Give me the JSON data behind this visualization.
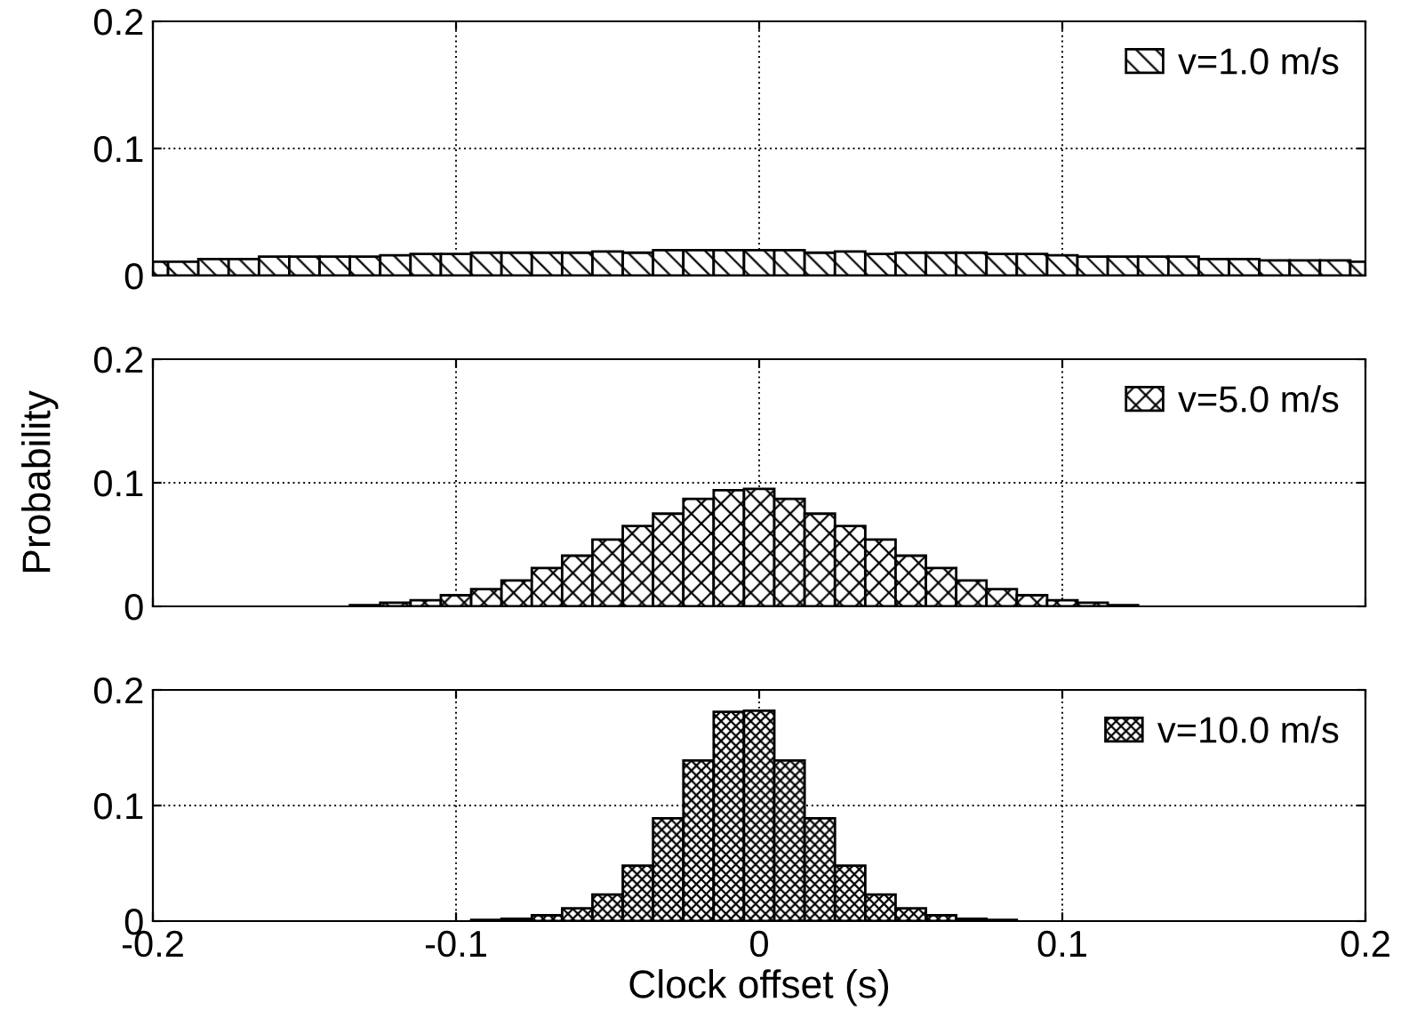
{
  "chart_data": [
    {
      "type": "histogram",
      "bins": [
        -0.2,
        -0.195,
        -0.185,
        -0.175,
        -0.165,
        -0.155,
        -0.145,
        -0.135,
        -0.125,
        -0.115,
        -0.105,
        -0.095,
        -0.085,
        -0.075,
        -0.065,
        -0.055,
        -0.045,
        -0.035,
        -0.025,
        -0.015,
        -0.005,
        0.005,
        0.015,
        0.025,
        0.035,
        0.045,
        0.055,
        0.065,
        0.075,
        0.085,
        0.095,
        0.105,
        0.115,
        0.125,
        0.135,
        0.145,
        0.155,
        0.165,
        0.175,
        0.185,
        0.195,
        0.2
      ],
      "series": [
        {
          "name": "v=1.0 m/s",
          "color": "#000000",
          "values": [
            0.011,
            0.011,
            0.013,
            0.013,
            0.015,
            0.015,
            0.015,
            0.015,
            0.016,
            0.017,
            0.017,
            0.018,
            0.018,
            0.018,
            0.018,
            0.019,
            0.018,
            0.02,
            0.02,
            0.02,
            0.02,
            0.02,
            0.018,
            0.019,
            0.017,
            0.018,
            0.018,
            0.018,
            0.017,
            0.017,
            0.016,
            0.015,
            0.015,
            0.015,
            0.015,
            0.013,
            0.013,
            0.012,
            0.012,
            0.012,
            0.011
          ]
        }
      ],
      "xlim": [
        -0.2,
        0.2
      ],
      "xticks": [
        -0.2,
        -0.1,
        0,
        0.1,
        0.2
      ],
      "ylim": [
        0,
        0.2
      ],
      "yticks": [
        0,
        0.1,
        0.2
      ],
      "grid": true,
      "legend": "top right",
      "tick_labels": "y"
    },
    {
      "type": "histogram",
      "ylabel": "Probability",
      "bins": [
        -0.135,
        -0.125,
        -0.115,
        -0.105,
        -0.095,
        -0.085,
        -0.075,
        -0.065,
        -0.055,
        -0.045,
        -0.035,
        -0.025,
        -0.015,
        -0.005,
        0.005,
        0.015,
        0.025,
        0.035,
        0.045,
        0.055,
        0.065,
        0.075,
        0.085,
        0.095,
        0.105,
        0.115,
        0.125
      ],
      "series": [
        {
          "name": "v=5.0 m/s",
          "color": "#000000",
          "values": [
            0.001,
            0.003,
            0.005,
            0.009,
            0.014,
            0.021,
            0.031,
            0.041,
            0.054,
            0.065,
            0.075,
            0.087,
            0.094,
            0.095,
            0.087,
            0.075,
            0.065,
            0.054,
            0.041,
            0.031,
            0.021,
            0.014,
            0.009,
            0.005,
            0.003,
            0.001
          ]
        }
      ],
      "xlim": [
        -0.2,
        0.2
      ],
      "xticks": [
        -0.2,
        -0.1,
        0,
        0.1,
        0.2
      ],
      "ylim": [
        0,
        0.2
      ],
      "yticks": [
        0,
        0.1,
        0.2
      ],
      "grid": true,
      "legend": "top right",
      "tick_labels": "y"
    },
    {
      "type": "histogram",
      "xlabel": "Clock offset (s)",
      "bins": [
        -0.095,
        -0.085,
        -0.075,
        -0.065,
        -0.055,
        -0.045,
        -0.035,
        -0.025,
        -0.015,
        -0.005,
        0.005,
        0.015,
        0.025,
        0.035,
        0.045,
        0.055,
        0.065,
        0.075,
        0.085
      ],
      "series": [
        {
          "name": "v=10.0 m/s",
          "color": "#000000",
          "values": [
            0.001,
            0.002,
            0.005,
            0.011,
            0.023,
            0.048,
            0.089,
            0.139,
            0.181,
            0.182,
            0.139,
            0.089,
            0.048,
            0.023,
            0.011,
            0.005,
            0.002,
            0.001
          ]
        }
      ],
      "xlim": [
        -0.2,
        0.2
      ],
      "xticks": [
        -0.2,
        -0.1,
        0,
        0.1,
        0.2
      ],
      "ylim": [
        0,
        0.2
      ],
      "yticks": [
        0,
        0.1,
        0.2
      ],
      "grid": true,
      "legend": "top right"
    }
  ]
}
